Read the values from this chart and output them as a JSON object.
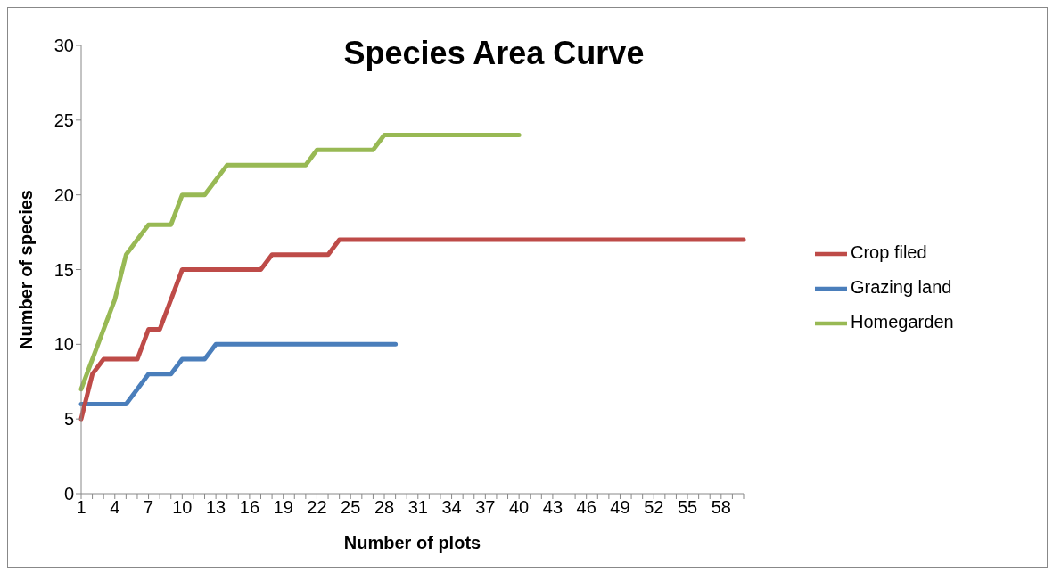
{
  "chart_data": {
    "type": "line",
    "title": "Species Area Curve",
    "xlabel": "Number of plots",
    "ylabel": "Number of species",
    "categories": [
      "1",
      null,
      null,
      "4",
      null,
      null,
      "7",
      null,
      null,
      "10",
      null,
      null,
      "13",
      null,
      null,
      "16",
      null,
      null,
      "19",
      null,
      null,
      "22",
      null,
      null,
      "25",
      null,
      null,
      "28",
      null,
      null,
      "31",
      null,
      null,
      "34",
      null,
      null,
      "37",
      null,
      null,
      "40",
      null,
      null,
      "43",
      null,
      null,
      "46",
      null,
      null,
      "49",
      null,
      null,
      "52",
      null,
      null,
      "55",
      null,
      null,
      "58",
      null,
      null
    ],
    "series": [
      {
        "name": "Grazing land",
        "color": "#4a7ebb",
        "values": [
          6,
          6,
          6,
          6,
          6,
          7,
          8,
          8,
          8,
          9,
          9,
          9,
          10,
          10,
          10,
          10,
          10,
          10,
          10,
          10,
          10,
          10,
          10,
          10,
          10,
          10,
          10,
          10,
          10,
          null,
          null,
          null,
          null,
          null,
          null,
          null,
          null,
          null,
          null,
          null,
          null,
          null,
          null,
          null,
          null,
          null,
          null,
          null,
          null,
          null,
          null,
          null,
          null,
          null,
          null,
          null,
          null,
          null,
          null,
          null
        ]
      },
      {
        "name": "Crop filed",
        "color": "#be4b48",
        "values": [
          5,
          8,
          9,
          9,
          9,
          9,
          11,
          11,
          13,
          15,
          15,
          15,
          15,
          15,
          15,
          15,
          15,
          16,
          16,
          16,
          16,
          16,
          16,
          17,
          17,
          17,
          17,
          17,
          17,
          17,
          17,
          17,
          17,
          17,
          17,
          17,
          17,
          17,
          17,
          17,
          17,
          17,
          17,
          17,
          17,
          17,
          17,
          17,
          17,
          17,
          17,
          17,
          17,
          17,
          17,
          17,
          17,
          17,
          17,
          17
        ]
      },
      {
        "name": "Homegarden",
        "color": "#98b954",
        "values": [
          7,
          9,
          11,
          13,
          16,
          17,
          18,
          18,
          18,
          20,
          20,
          20,
          21,
          22,
          22,
          22,
          22,
          22,
          22,
          22,
          22,
          23,
          23,
          23,
          23,
          23,
          23,
          24,
          24,
          24,
          24,
          24,
          24,
          24,
          24,
          24,
          24,
          24,
          24,
          24,
          null,
          null,
          null,
          null,
          null,
          null,
          null,
          null,
          null,
          null,
          null,
          null,
          null,
          null,
          null,
          null,
          null,
          null,
          null,
          null
        ]
      }
    ],
    "ylim": [
      0,
      30
    ],
    "yticks": [
      0,
      5,
      10,
      15,
      20,
      25,
      30
    ],
    "grid": false,
    "legend": "right",
    "marker": "none",
    "line_style": "solid"
  }
}
